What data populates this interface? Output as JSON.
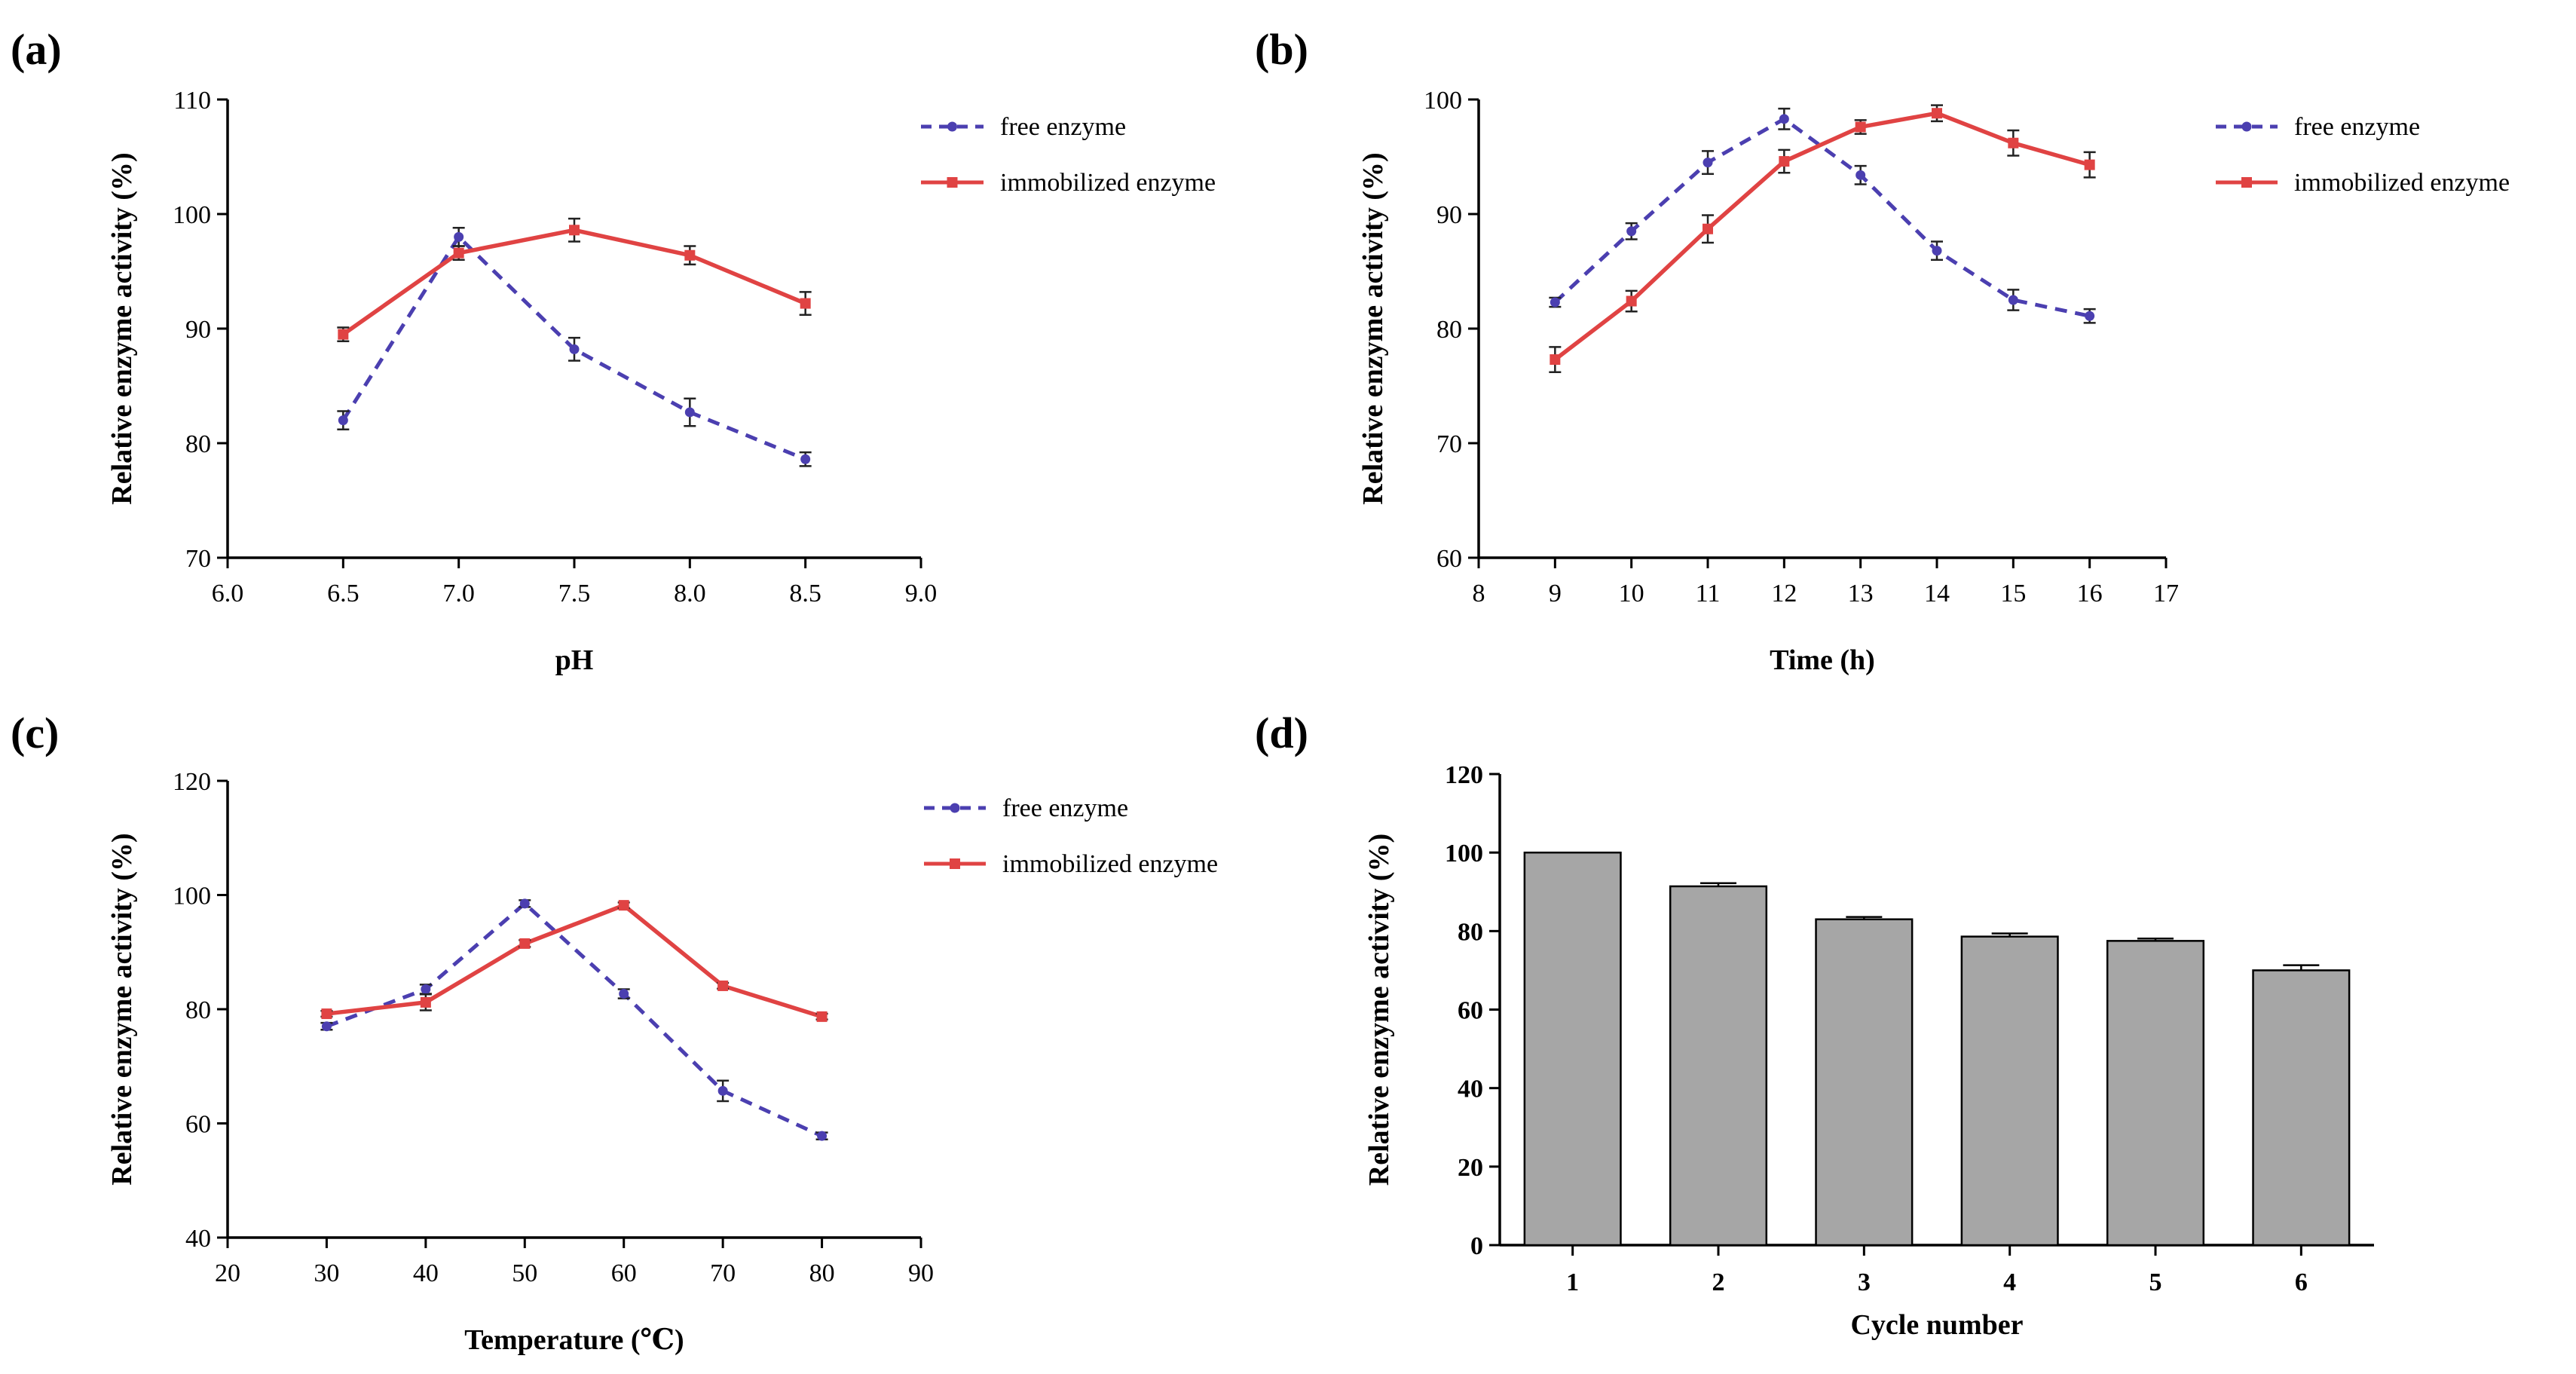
{
  "colors": {
    "free": "#4b3fb0",
    "immobilized": "#e04343",
    "bar": "#a6a6a6",
    "axis": "#000000"
  },
  "chart_data": [
    {
      "id": "a",
      "panel_label": "(a)",
      "type": "line",
      "xlabel": "pH",
      "ylabel": "Relative enzyme activity (%)",
      "xlim": [
        6.0,
        9.0
      ],
      "ylim": [
        70,
        110
      ],
      "xticks": [
        "6.0",
        "6.5",
        "7.0",
        "7.5",
        "8.0",
        "8.5",
        "9.0"
      ],
      "yticks": [
        "70",
        "80",
        "90",
        "100",
        "110"
      ],
      "legend_position": "top-right",
      "series": [
        {
          "name": "free enzyme",
          "style": "dashed",
          "x": [
            6.5,
            7.0,
            7.5,
            8.0,
            8.5
          ],
          "y": [
            82.0,
            98.0,
            88.2,
            82.7,
            78.6
          ],
          "err": [
            0.8,
            0.8,
            1.0,
            1.2,
            0.6
          ]
        },
        {
          "name": "immobilized enzyme",
          "style": "solid",
          "x": [
            6.5,
            7.0,
            7.5,
            8.0,
            8.5
          ],
          "y": [
            89.5,
            96.6,
            98.6,
            96.4,
            92.2
          ],
          "err": [
            0.6,
            0.6,
            1.0,
            0.8,
            1.0
          ]
        }
      ]
    },
    {
      "id": "b",
      "panel_label": "(b)",
      "type": "line",
      "xlabel": "Time (h)",
      "ylabel": "Relative enzyme activity (%)",
      "xlim": [
        8,
        17
      ],
      "ylim": [
        60,
        100
      ],
      "xticks": [
        "8",
        "9",
        "10",
        "11",
        "12",
        "13",
        "14",
        "15",
        "16",
        "17"
      ],
      "yticks": [
        "60",
        "70",
        "80",
        "90",
        "100"
      ],
      "legend_position": "top-right",
      "series": [
        {
          "name": "free enzyme",
          "style": "dashed",
          "x": [
            9,
            10,
            11,
            12,
            13,
            14,
            15,
            16
          ],
          "y": [
            82.3,
            88.5,
            94.5,
            98.3,
            93.4,
            86.8,
            82.5,
            81.1
          ],
          "err": [
            0.4,
            0.7,
            1.0,
            0.9,
            0.8,
            0.8,
            0.9,
            0.6
          ]
        },
        {
          "name": "immobilized enzyme",
          "style": "solid",
          "x": [
            9,
            10,
            11,
            12,
            13,
            14,
            15,
            16
          ],
          "y": [
            77.3,
            82.4,
            88.7,
            94.6,
            97.6,
            98.8,
            96.2,
            94.3
          ],
          "err": [
            1.1,
            0.9,
            1.2,
            1.0,
            0.6,
            0.7,
            1.1,
            1.1
          ]
        }
      ]
    },
    {
      "id": "c",
      "panel_label": "(c)",
      "type": "line",
      "xlabel": "Temperature (℃)",
      "ylabel": "Relative enzyme activity (%)",
      "xlim": [
        20,
        90
      ],
      "ylim": [
        40,
        120
      ],
      "xticks": [
        "20",
        "30",
        "40",
        "50",
        "60",
        "70",
        "80",
        "90"
      ],
      "yticks": [
        "40",
        "60",
        "80",
        "100",
        "120"
      ],
      "legend_position": "top-right",
      "series": [
        {
          "name": "free enzyme",
          "style": "dashed",
          "x": [
            30,
            40,
            50,
            60,
            70,
            80
          ],
          "y": [
            77.0,
            83.5,
            98.5,
            82.7,
            65.7,
            57.8
          ],
          "err": [
            0.6,
            0.8,
            0.6,
            0.8,
            1.8,
            0.6
          ]
        },
        {
          "name": "immobilized enzyme",
          "style": "solid",
          "x": [
            30,
            40,
            50,
            60,
            70,
            80
          ],
          "y": [
            79.2,
            81.2,
            91.5,
            98.2,
            84.1,
            78.7
          ],
          "err": [
            0.5,
            1.4,
            0.6,
            0.5,
            0.5,
            0.5
          ]
        }
      ]
    },
    {
      "id": "d",
      "panel_label": "(d)",
      "type": "bar",
      "xlabel": "Cycle number",
      "ylabel": "Relative enzyme activity (%)",
      "ylim": [
        0,
        120
      ],
      "yticks": [
        "0",
        "20",
        "40",
        "60",
        "80",
        "100",
        "120"
      ],
      "categories": [
        "1",
        "2",
        "3",
        "4",
        "5",
        "6"
      ],
      "values": [
        100.0,
        91.4,
        83.0,
        78.6,
        77.5,
        70.0
      ],
      "err": [
        0,
        0.8,
        0.6,
        0.8,
        0.6,
        1.3
      ]
    }
  ]
}
